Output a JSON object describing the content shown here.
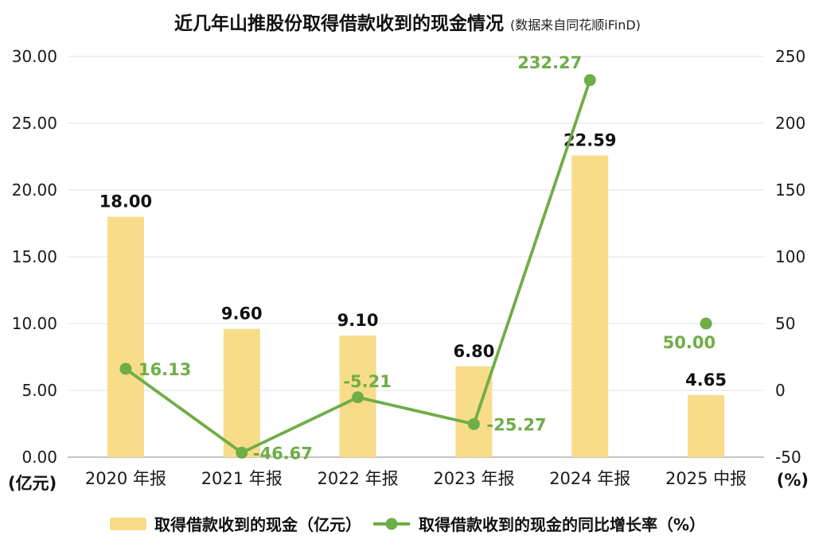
{
  "title": {
    "main": "近几年山推股份取得借款收到的现金情况",
    "note": "(数据来自同花顺iFinD)"
  },
  "chart_data": {
    "type": "combo",
    "categories": [
      "2020 年报",
      "2021 年报",
      "2022 年报",
      "2023 年报",
      "2024 年报",
      "2025 中报"
    ],
    "series": [
      {
        "name": "取得借款收到的现金（亿元）",
        "type": "bar",
        "axis": "left",
        "color": "#F7DC8A",
        "values": [
          18.0,
          9.6,
          9.1,
          6.8,
          22.59,
          4.65
        ],
        "labels": [
          "18.00",
          "9.60",
          "9.10",
          "6.80",
          "22.59",
          "4.65"
        ]
      },
      {
        "name": "取得借款收到的现金的同比增长率（%）",
        "type": "line",
        "axis": "right",
        "color": "#6FAD47",
        "values": [
          16.13,
          -46.67,
          -5.21,
          -25.27,
          232.27,
          50.0
        ],
        "labels": [
          "16.13",
          "-46.67",
          "-5.21",
          "-25.27",
          "232.27",
          "50.00"
        ],
        "segments": [
          [
            0,
            1,
            2,
            3,
            4
          ],
          [
            5
          ]
        ]
      }
    ],
    "left_axis": {
      "min": 0,
      "max": 30,
      "step": 5,
      "unit": "(亿元)",
      "tick_labels": [
        "0.00",
        "5.00",
        "10.00",
        "15.00",
        "20.00",
        "25.00",
        "30.00"
      ]
    },
    "right_axis": {
      "min": -50,
      "max": 250,
      "step": 50,
      "unit": "(%)",
      "tick_labels": [
        "-50",
        "0",
        "50",
        "100",
        "150",
        "200",
        "250"
      ]
    },
    "grid": true,
    "legend_position": "bottom"
  }
}
